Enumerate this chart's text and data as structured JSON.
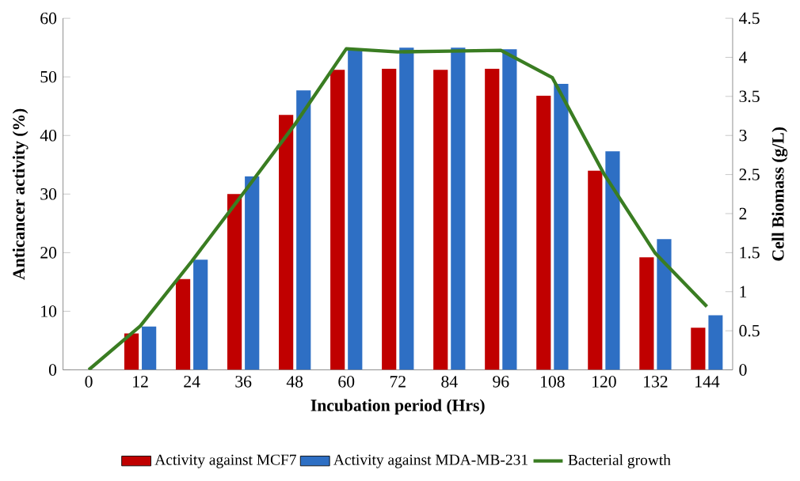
{
  "chart_data": {
    "type": "bar",
    "xlabel": "Incubation period (Hrs)",
    "ylabel": "Anticancer activity (%)",
    "y2label": "Cell Biomass (g/L)",
    "categories": [
      "0",
      "12",
      "24",
      "36",
      "48",
      "60",
      "72",
      "84",
      "96",
      "108",
      "120",
      "132",
      "144"
    ],
    "series": [
      {
        "name": "Activity against MCF7",
        "color": "#c00000",
        "values": [
          null,
          6.2,
          15.5,
          30,
          43.5,
          51.2,
          51.4,
          51.2,
          51.4,
          46.8,
          34,
          19.2,
          7.2
        ]
      },
      {
        "name": "Activity against MDA-MB-231",
        "color": "#2e6fc4",
        "values": [
          null,
          7.4,
          18.8,
          33,
          47.7,
          54.7,
          55,
          55,
          54.7,
          48.8,
          37.3,
          22.3,
          9.3
        ]
      },
      {
        "name": "Bacterial growth",
        "color": "#3a7d22",
        "type": "line",
        "axis": "y2",
        "values": [
          0,
          0.56,
          1.39,
          2.26,
          3.14,
          4.11,
          4.07,
          4.08,
          4.09,
          3.74,
          2.51,
          1.49,
          0.81
        ]
      }
    ],
    "ylim": [
      0,
      60
    ],
    "yticks": [
      0,
      10,
      20,
      30,
      40,
      50,
      60
    ],
    "y2lim": [
      0,
      4.5
    ],
    "y2ticks": [
      0,
      0.5,
      1,
      1.5,
      2,
      2.5,
      3,
      3.5,
      4,
      4.5
    ],
    "legend": "bottom"
  }
}
